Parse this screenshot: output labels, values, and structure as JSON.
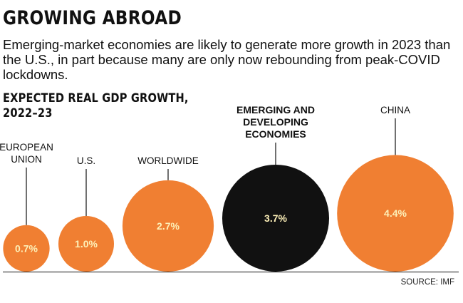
{
  "headline": "GROWING ABROAD",
  "dek": "Emerging-market economies are likely to generate more growth in 2023 than the U.S., in part because many are only now rebounding from peak-COVID lockdowns.",
  "source": "SOURCE: IMF",
  "colors": {
    "accent": "#f07f32",
    "emphasis": "#111111",
    "value_on_orange": "#fdf0b8",
    "value_on_black": "#fdf0b8"
  },
  "chart_data": {
    "type": "bubble",
    "title": "EXPECTED REAL GDP GROWTH, 2022–23",
    "title_lines": [
      "EXPECTED REAL GDP GROWTH,",
      "2022–23"
    ],
    "unit": "%",
    "categories": [
      [
        "EUROPEAN",
        "UNION"
      ],
      [
        "U.S."
      ],
      [
        "WORLDWIDE"
      ],
      [
        "EMERGING AND",
        "DEVELOPING",
        "ECONOMIES"
      ],
      [
        "CHINA"
      ]
    ],
    "values": [
      0.7,
      1.0,
      2.7,
      3.7,
      4.4
    ],
    "value_labels": [
      "0.7%",
      "1.0%",
      "2.7%",
      "3.7%",
      "4.4%"
    ],
    "highlight": [
      false,
      false,
      false,
      true,
      false
    ]
  }
}
